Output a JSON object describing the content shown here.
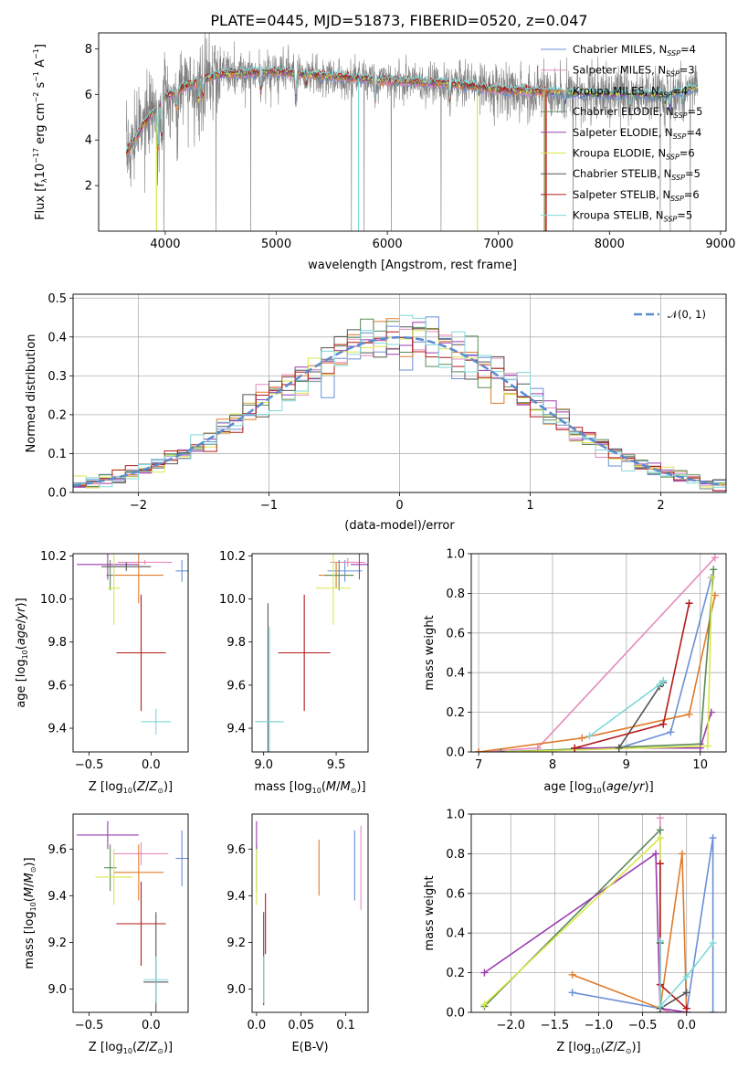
{
  "figure": {
    "title": "PLATE=0445, MJD=51873, FIBERID=0520, z=0.047"
  },
  "colors": {
    "data_gray": "#808080",
    "Chabrier MILES": "#6b8fd6",
    "Salpeter MILES": "#e68bbd",
    "Kroupa MILES": "#e07b2a",
    "Chabrier ELODIE": "#5a8a5a",
    "Salpeter ELODIE": "#9b3bb0",
    "Kroupa ELODIE": "#d9e84a",
    "Chabrier STELIB": "#555555",
    "Salpeter STELIB": "#b31a1a",
    "Kroupa STELIB": "#80d8d8",
    "gaussian": "#5b8bd0"
  },
  "chart_data": [
    {
      "id": "spectrum",
      "type": "line",
      "xlabel": "wavelength [Angstrom, rest frame]",
      "ylabel": "Flux [fλ10⁻¹⁷ erg cm⁻² s⁻¹ A⁻¹]",
      "xlim": [
        3400,
        9050
      ],
      "ylim": [
        0,
        8.7
      ],
      "xticks": [
        4000,
        5000,
        6000,
        7000,
        8000,
        9000
      ],
      "yticks": [
        2,
        4,
        6,
        8
      ],
      "grid": false,
      "legend_position": "upper-right",
      "legend": [
        {
          "model": "Chabrier MILES",
          "nssp": "4"
        },
        {
          "model": "Salpeter MILES",
          "nssp": "3"
        },
        {
          "model": "Kroupa MILES",
          "nssp": "4"
        },
        {
          "model": "Chabrier ELODIE",
          "nssp": "5"
        },
        {
          "model": "Salpeter ELODIE",
          "nssp": "4"
        },
        {
          "model": "Kroupa ELODIE",
          "nssp": "6"
        },
        {
          "model": "Chabrier STELIB",
          "nssp": "5"
        },
        {
          "model": "Salpeter STELIB",
          "nssp": "6"
        },
        {
          "model": "Kroupa STELIB",
          "nssp": "5"
        }
      ],
      "continuum": {
        "x": [
          3650,
          3800,
          4000,
          4200,
          4500,
          5000,
          5500,
          6000,
          6500,
          7000,
          7500,
          8000,
          8500,
          8800
        ],
        "y": [
          4.4,
          5.2,
          5.9,
          6.4,
          6.9,
          7.0,
          6.8,
          6.6,
          6.5,
          6.2,
          6.1,
          6.0,
          6.0,
          6.3
        ]
      }
    },
    {
      "id": "residuals",
      "type": "step",
      "xlabel": "(data-model)/error",
      "ylabel": "Normed distribution",
      "xlim": [
        -2.5,
        2.5
      ],
      "ylim": [
        0,
        0.51
      ],
      "xticks": [
        -2,
        -1,
        0,
        1,
        2
      ],
      "yticks": [
        0.0,
        0.1,
        0.2,
        0.3,
        0.4,
        0.5
      ],
      "grid": true,
      "legend_position": "upper-right",
      "legend": "𝒩(0, 1)"
    },
    {
      "id": "age_vs_Z",
      "type": "errorbar",
      "xlabel": "Z [log10(Z/Z⊙)]",
      "ylabel": "age  [log10(age/yr)]",
      "xlim": [
        -0.63,
        0.3
      ],
      "ylim": [
        9.29,
        10.21
      ],
      "xticks": [
        -0.5,
        0.0
      ],
      "yticks": [
        9.4,
        9.6,
        9.8,
        10.0,
        10.2
      ],
      "points": [
        {
          "model": "Chabrier MILES",
          "x": 0.25,
          "xerr": 0.05,
          "y": 10.13,
          "yerr": 0.05
        },
        {
          "model": "Salpeter MILES",
          "x": -0.05,
          "xerr": 0.22,
          "y": 10.17,
          "yerr": 0.01
        },
        {
          "model": "Kroupa MILES",
          "x": -0.1,
          "xerr": 0.2,
          "y": 10.11,
          "yerr": 0.13
        },
        {
          "model": "Chabrier ELODIE",
          "x": -0.33,
          "xerr": 0.03,
          "y": 10.11,
          "yerr": 0.07
        },
        {
          "model": "Salpeter ELODIE",
          "x": -0.35,
          "xerr": 0.25,
          "y": 10.16,
          "yerr": 0.07
        },
        {
          "model": "Kroupa ELODIE",
          "x": -0.3,
          "xerr": 0.05,
          "y": 10.05,
          "yerr": 0.17
        },
        {
          "model": "Chabrier STELIB",
          "x": -0.2,
          "xerr": 0.2,
          "y": 10.15,
          "yerr": 0.02
        },
        {
          "model": "Salpeter STELIB",
          "x": -0.08,
          "xerr": 0.2,
          "y": 9.75,
          "yerr": 0.27
        },
        {
          "model": "Kroupa STELIB",
          "x": 0.04,
          "xerr": 0.12,
          "y": 9.43,
          "yerr": 0.06
        }
      ]
    },
    {
      "id": "age_vs_mass",
      "type": "errorbar",
      "xlabel": "mass [log10(M/M⊙)]",
      "ylabel": "",
      "xlim": [
        8.92,
        9.72
      ],
      "ylim": [
        9.29,
        10.21
      ],
      "xticks": [
        9.0,
        9.5
      ],
      "yticks": [
        9.4,
        9.6,
        9.8,
        10.0,
        10.2
      ],
      "points": [
        {
          "model": "Chabrier MILES",
          "x": 9.56,
          "xerr": 0.12,
          "y": 10.13,
          "yerr": 0.05
        },
        {
          "model": "Salpeter MILES",
          "x": 9.58,
          "xerr": 0.12,
          "y": 10.17,
          "yerr": 0.02
        },
        {
          "model": "Kroupa MILES",
          "x": 9.5,
          "xerr": 0.12,
          "y": 10.11,
          "yerr": 0.06
        },
        {
          "model": "Chabrier ELODIE",
          "x": 9.52,
          "xerr": 0.1,
          "y": 10.11,
          "yerr": 0.07
        },
        {
          "model": "Salpeter ELODIE",
          "x": 9.66,
          "xerr": 0.06,
          "y": 10.16,
          "yerr": 0.07
        },
        {
          "model": "Kroupa ELODIE",
          "x": 9.48,
          "xerr": 0.12,
          "y": 10.05,
          "yerr": 0.17
        },
        {
          "model": "Chabrier STELIB",
          "x": 9.03,
          "xerr": 0.08,
          "y": 9.43,
          "yerr": 0.55
        },
        {
          "model": "Salpeter STELIB",
          "x": 9.28,
          "xerr": 0.18,
          "y": 9.75,
          "yerr": 0.27
        },
        {
          "model": "Kroupa STELIB",
          "x": 9.04,
          "xerr": 0.1,
          "y": 9.43,
          "yerr": 0.44
        }
      ]
    },
    {
      "id": "weight_vs_age",
      "type": "line",
      "xlabel": "age  [log10(age/yr)]",
      "ylabel": "mass weight",
      "xlim": [
        6.9,
        10.35
      ],
      "ylim": [
        0,
        1.0
      ],
      "xticks": [
        7,
        8,
        9,
        10
      ],
      "yticks": [
        0.0,
        0.2,
        0.4,
        0.6,
        0.8,
        1.0
      ],
      "grid": true,
      "series": [
        {
          "model": "Chabrier MILES",
          "x": [
            8.9,
            9.6,
            10.15
          ],
          "y": [
            0.02,
            0.1,
            0.88
          ]
        },
        {
          "model": "Salpeter MILES",
          "x": [
            7.0,
            7.8,
            10.2
          ],
          "y": [
            0.0,
            0.02,
            0.98
          ]
        },
        {
          "model": "Kroupa MILES",
          "x": [
            7.0,
            8.4,
            9.85,
            10.2
          ],
          "y": [
            0.0,
            0.07,
            0.19,
            0.79
          ]
        },
        {
          "model": "Chabrier ELODIE",
          "x": [
            7.3,
            10.0,
            10.18
          ],
          "y": [
            0.0,
            0.04,
            0.92
          ]
        },
        {
          "model": "Salpeter ELODIE",
          "x": [
            8.3,
            10.0,
            10.15
          ],
          "y": [
            0.02,
            0.02,
            0.2
          ]
        },
        {
          "model": "Kroupa ELODIE",
          "x": [
            7.4,
            10.1,
            10.16
          ],
          "y": [
            0.0,
            0.03,
            0.88
          ]
        },
        {
          "model": "Chabrier STELIB",
          "x": [
            8.9,
            9.45,
            9.5
          ],
          "y": [
            0.02,
            0.33,
            0.35
          ]
        },
        {
          "model": "Salpeter STELIB",
          "x": [
            8.3,
            9.5,
            9.85
          ],
          "y": [
            0.02,
            0.14,
            0.75
          ]
        },
        {
          "model": "Kroupa STELIB",
          "x": [
            8.5,
            9.45,
            9.5
          ],
          "y": [
            0.08,
            0.34,
            0.36
          ]
        }
      ]
    },
    {
      "id": "mass_vs_Z",
      "type": "errorbar",
      "xlabel": "Z [log10(Z/Z⊙)]",
      "ylabel": "mass [log10(M/M⊙)]",
      "xlim": [
        -0.63,
        0.3
      ],
      "ylim": [
        8.9,
        9.75
      ],
      "xticks": [
        -0.5,
        0.0
      ],
      "yticks": [
        9.0,
        9.2,
        9.4,
        9.6
      ],
      "points": [
        {
          "model": "Chabrier MILES",
          "x": 0.25,
          "xerr": 0.05,
          "y": 9.56,
          "yerr": 0.12
        },
        {
          "model": "Salpeter MILES",
          "x": -0.08,
          "xerr": 0.22,
          "y": 9.58,
          "yerr": 0.05
        },
        {
          "model": "Kroupa MILES",
          "x": -0.1,
          "xerr": 0.2,
          "y": 9.5,
          "yerr": 0.12
        },
        {
          "model": "Chabrier ELODIE",
          "x": -0.33,
          "xerr": 0.05,
          "y": 9.52,
          "yerr": 0.1
        },
        {
          "model": "Salpeter ELODIE",
          "x": -0.35,
          "xerr": 0.25,
          "y": 9.66,
          "yerr": 0.06
        },
        {
          "model": "Kroupa ELODIE",
          "x": -0.3,
          "xerr": 0.15,
          "y": 9.48,
          "yerr": 0.12
        },
        {
          "model": "Chabrier STELIB",
          "x": 0.04,
          "xerr": 0.1,
          "y": 9.03,
          "yerr": 0.3
        },
        {
          "model": "Salpeter STELIB",
          "x": -0.08,
          "xerr": 0.2,
          "y": 9.28,
          "yerr": 0.18
        },
        {
          "model": "Kroupa STELIB",
          "x": 0.04,
          "xerr": 0.1,
          "y": 9.04,
          "yerr": 0.1
        }
      ]
    },
    {
      "id": "mass_vs_ebv",
      "type": "errorbar",
      "xlabel": "E(B-V)",
      "ylabel": "",
      "xlim": [
        -0.005,
        0.125
      ],
      "ylim": [
        8.9,
        9.75
      ],
      "xticks": [
        0.0,
        0.05,
        0.1
      ],
      "yticks": [
        9.0,
        9.2,
        9.4,
        9.6
      ],
      "points": [
        {
          "model": "Chabrier MILES",
          "x": 0.11,
          "xerr": 0.0,
          "y": 9.53,
          "yerr": 0.15
        },
        {
          "model": "Salpeter MILES",
          "x": 0.117,
          "xerr": 0.0,
          "y": 9.52,
          "yerr": 0.18
        },
        {
          "model": "Kroupa MILES",
          "x": 0.07,
          "xerr": 0.0,
          "y": 9.52,
          "yerr": 0.12
        },
        {
          "model": "Chabrier ELODIE",
          "x": 0.0,
          "xerr": 0.0,
          "y": 9.52,
          "yerr": 0.1
        },
        {
          "model": "Salpeter ELODIE",
          "x": 0.0,
          "xerr": 0.0,
          "y": 9.66,
          "yerr": 0.06
        },
        {
          "model": "Kroupa ELODIE",
          "x": 0.0,
          "xerr": 0.0,
          "y": 9.48,
          "yerr": 0.12
        },
        {
          "model": "Chabrier STELIB",
          "x": 0.008,
          "xerr": 0.0,
          "y": 9.13,
          "yerr": 0.2
        },
        {
          "model": "Salpeter STELIB",
          "x": 0.01,
          "xerr": 0.0,
          "y": 9.28,
          "yerr": 0.13
        },
        {
          "model": "Kroupa STELIB",
          "x": 0.008,
          "xerr": 0.0,
          "y": 9.04,
          "yerr": 0.1
        }
      ]
    },
    {
      "id": "weight_vs_Z",
      "type": "line",
      "xlabel": "Z [log10(Z/Z⊙)]",
      "ylabel": "mass weight",
      "xlim": [
        -2.45,
        0.45
      ],
      "ylim": [
        0,
        1.0
      ],
      "xticks": [
        -2.0,
        -1.5,
        -1.0,
        -0.5,
        0.0
      ],
      "yticks": [
        0.0,
        0.2,
        0.4,
        0.6,
        0.8,
        1.0
      ],
      "grid": true,
      "series": [
        {
          "model": "Chabrier MILES",
          "x": [
            -1.3,
            -0.3,
            0.0,
            0.3,
            0.3
          ],
          "y": [
            0.1,
            0.02,
            0.0,
            0.88,
            0.0
          ]
        },
        {
          "model": "Salpeter MILES",
          "x": [
            -0.3,
            -0.3,
            -0.2,
            0.0
          ],
          "y": [
            0.98,
            0.02,
            0.0,
            0.0
          ]
        },
        {
          "model": "Kroupa MILES",
          "x": [
            -1.3,
            -0.3,
            -0.05,
            0.0
          ],
          "y": [
            0.19,
            0.02,
            0.8,
            0.0
          ]
        },
        {
          "model": "Chabrier ELODIE",
          "x": [
            -2.3,
            -0.3,
            -0.3
          ],
          "y": [
            0.03,
            0.92,
            0.0
          ]
        },
        {
          "model": "Salpeter ELODIE",
          "x": [
            -2.3,
            -0.35,
            -0.3,
            0.0
          ],
          "y": [
            0.2,
            0.8,
            0.02,
            0.0
          ]
        },
        {
          "model": "Kroupa ELODIE",
          "x": [
            -2.3,
            -0.3,
            -0.3
          ],
          "y": [
            0.04,
            0.88,
            0.03
          ]
        },
        {
          "model": "Chabrier STELIB",
          "x": [
            -0.3,
            -0.3,
            0.0
          ],
          "y": [
            0.35,
            0.02,
            0.1
          ]
        },
        {
          "model": "Salpeter STELIB",
          "x": [
            -0.3,
            -0.3,
            0.0,
            0.0
          ],
          "y": [
            0.75,
            0.14,
            0.02,
            0.02
          ]
        },
        {
          "model": "Kroupa STELIB",
          "x": [
            -0.3,
            -0.3,
            0.0,
            0.3
          ],
          "y": [
            0.36,
            0.03,
            0.18,
            0.35
          ]
        }
      ]
    }
  ]
}
